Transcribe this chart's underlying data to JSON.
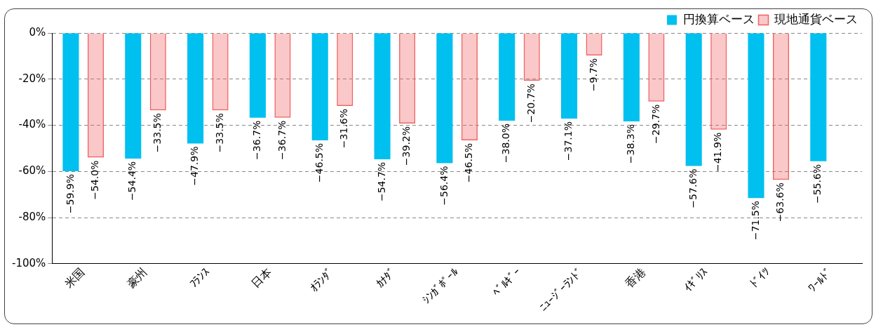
{
  "chart_data": {
    "type": "bar",
    "categories": [
      "米国",
      "豪州",
      "ﾌﾗﾝｽ",
      "日本",
      "ｵﾗﾝﾀﾞ",
      "ｶﾅﾀﾞ",
      "ｼﾝｶﾞﾎﾟｰﾙ",
      "ﾍﾞﾙｷﾞｰ",
      "ﾆｭｰｼﾞｰﾗﾝﾄﾞ",
      "香港",
      "ｲｷﾞﾘｽ",
      "ﾄﾞｲﾂ",
      "ﾜｰﾙﾄﾞ"
    ],
    "series": [
      {
        "name": "円換算ベース",
        "color": "#00c0f0",
        "values": [
          -59.9,
          -54.4,
          -47.9,
          -36.7,
          -46.5,
          -54.7,
          -56.4,
          -38.0,
          -37.1,
          -38.3,
          -57.6,
          -71.5,
          -55.6
        ],
        "value_labels": [
          "−59.9%",
          "−54.4%",
          "−47.9%",
          "−36.7%",
          "−46.5%",
          "−54.7%",
          "−56.4%",
          "−38.0%",
          "−37.1%",
          "−38.3%",
          "−57.6%",
          "−71.5%",
          "−55.6%"
        ]
      },
      {
        "name": "現地通貨ベース",
        "color": "#f06060",
        "values": [
          -54.0,
          -33.5,
          -33.5,
          -36.7,
          -31.6,
          -39.2,
          -46.5,
          -20.7,
          -9.7,
          -29.7,
          -41.9,
          -63.6,
          null
        ],
        "value_labels": [
          "−54.0%",
          "−33.5%",
          "−33.5%",
          "−36.7%",
          "−31.6%",
          "−39.2%",
          "−46.5%",
          "−20.7%",
          "−9.7%",
          "−29.7%",
          "−41.9%",
          "−63.6%",
          null
        ]
      }
    ],
    "ylim": [
      -100,
      0
    ],
    "yticks": [
      {
        "value": -100,
        "label": "-100%"
      },
      {
        "value": -80,
        "label": "-80%"
      },
      {
        "value": -60,
        "label": "-60%"
      },
      {
        "value": -40,
        "label": "-40%"
      },
      {
        "value": -20,
        "label": "-20%"
      },
      {
        "value": 0,
        "label": "0%"
      }
    ],
    "grid": "y",
    "legend": "top right"
  }
}
